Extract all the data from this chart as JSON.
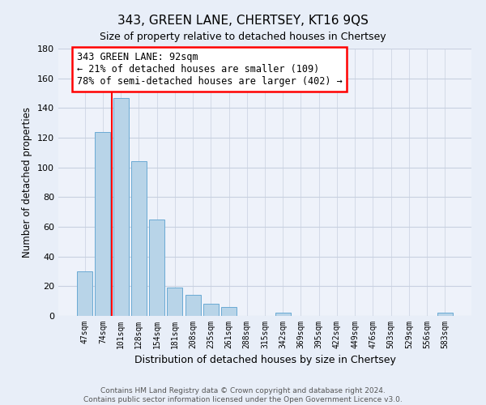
{
  "title": "343, GREEN LANE, CHERTSEY, KT16 9QS",
  "subtitle": "Size of property relative to detached houses in Chertsey",
  "xlabel": "Distribution of detached houses by size in Chertsey",
  "ylabel": "Number of detached properties",
  "bar_labels": [
    "47sqm",
    "74sqm",
    "101sqm",
    "128sqm",
    "154sqm",
    "181sqm",
    "208sqm",
    "235sqm",
    "261sqm",
    "288sqm",
    "315sqm",
    "342sqm",
    "369sqm",
    "395sqm",
    "422sqm",
    "449sqm",
    "476sqm",
    "503sqm",
    "529sqm",
    "556sqm",
    "583sqm"
  ],
  "bar_values": [
    30,
    124,
    147,
    104,
    65,
    19,
    14,
    8,
    6,
    0,
    0,
    2,
    0,
    0,
    0,
    0,
    0,
    0,
    0,
    0,
    2
  ],
  "bar_color": "#b8d4e8",
  "bar_edge_color": "#6aaad4",
  "vline_x": 1.5,
  "vline_color": "red",
  "ylim": [
    0,
    180
  ],
  "yticks": [
    0,
    20,
    40,
    60,
    80,
    100,
    120,
    140,
    160,
    180
  ],
  "annotation_title": "343 GREEN LANE: 92sqm",
  "annotation_line1": "← 21% of detached houses are smaller (109)",
  "annotation_line2": "78% of semi-detached houses are larger (402) →",
  "footer_line1": "Contains HM Land Registry data © Crown copyright and database right 2024.",
  "footer_line2": "Contains public sector information licensed under the Open Government Licence v3.0.",
  "bg_color": "#e8eef8",
  "plot_bg_color": "#eef2fa",
  "grid_color": "#c8d0e0"
}
